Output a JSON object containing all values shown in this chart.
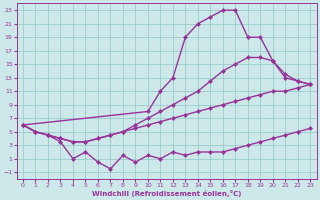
{
  "xlabel": "Windchill (Refroidissement éolien,°C)",
  "bg_color": "#cce8e8",
  "grid_color": "#99cccc",
  "line_color": "#993399",
  "xlim": [
    -0.5,
    23.5
  ],
  "ylim": [
    -2,
    24
  ],
  "xticks": [
    0,
    1,
    2,
    3,
    4,
    5,
    6,
    7,
    8,
    9,
    10,
    11,
    12,
    13,
    14,
    15,
    16,
    17,
    18,
    19,
    20,
    21,
    22,
    23
  ],
  "yticks": [
    -1,
    1,
    3,
    5,
    7,
    9,
    11,
    13,
    15,
    17,
    19,
    21,
    23
  ],
  "line_straight_x": [
    0,
    1,
    2,
    3,
    4,
    5,
    6,
    7,
    8,
    9,
    10,
    11,
    12,
    13,
    14,
    15,
    16,
    17,
    18,
    19,
    20,
    21,
    22,
    23
  ],
  "line_straight_y": [
    6,
    5,
    4.5,
    4,
    3.5,
    3.5,
    4,
    4.5,
    5,
    5.5,
    6,
    6.5,
    7,
    7.5,
    8,
    8.5,
    9,
    9.5,
    10,
    10.5,
    11,
    11,
    11.5,
    12
  ],
  "line_mid_x": [
    0,
    1,
    2,
    3,
    4,
    5,
    6,
    7,
    8,
    9,
    10,
    11,
    12,
    13,
    14,
    15,
    16,
    17,
    18,
    19,
    20,
    21,
    22,
    23
  ],
  "line_mid_y": [
    6,
    5,
    4.5,
    4,
    3.5,
    3.5,
    4,
    4.5,
    5,
    6,
    7,
    8,
    9,
    10,
    11,
    12.5,
    14,
    15,
    16,
    16,
    15.5,
    13.5,
    12.5,
    12
  ],
  "line_zigzag_x": [
    0,
    1,
    2,
    3,
    4,
    5,
    6,
    7,
    8,
    9,
    10,
    11,
    12,
    13,
    14,
    15,
    16,
    17,
    18,
    19,
    20,
    21,
    22,
    23
  ],
  "line_zigzag_y": [
    6,
    5,
    4.5,
    3.5,
    1,
    2,
    0.5,
    -0.5,
    1.5,
    0.5,
    1.5,
    1,
    2,
    1.5,
    2,
    2,
    2,
    2.5,
    3,
    3.5,
    4,
    4.5,
    5,
    5.5
  ],
  "line_peak_x": [
    0,
    10,
    11,
    12,
    13,
    14,
    15,
    16,
    17,
    18,
    19,
    20,
    21,
    22,
    23
  ],
  "line_peak_y": [
    6,
    8,
    11,
    13,
    19,
    21,
    22,
    23,
    23,
    19,
    19,
    15.5,
    13,
    12.5,
    12
  ],
  "marker_size": 2.5,
  "lw": 1.0
}
